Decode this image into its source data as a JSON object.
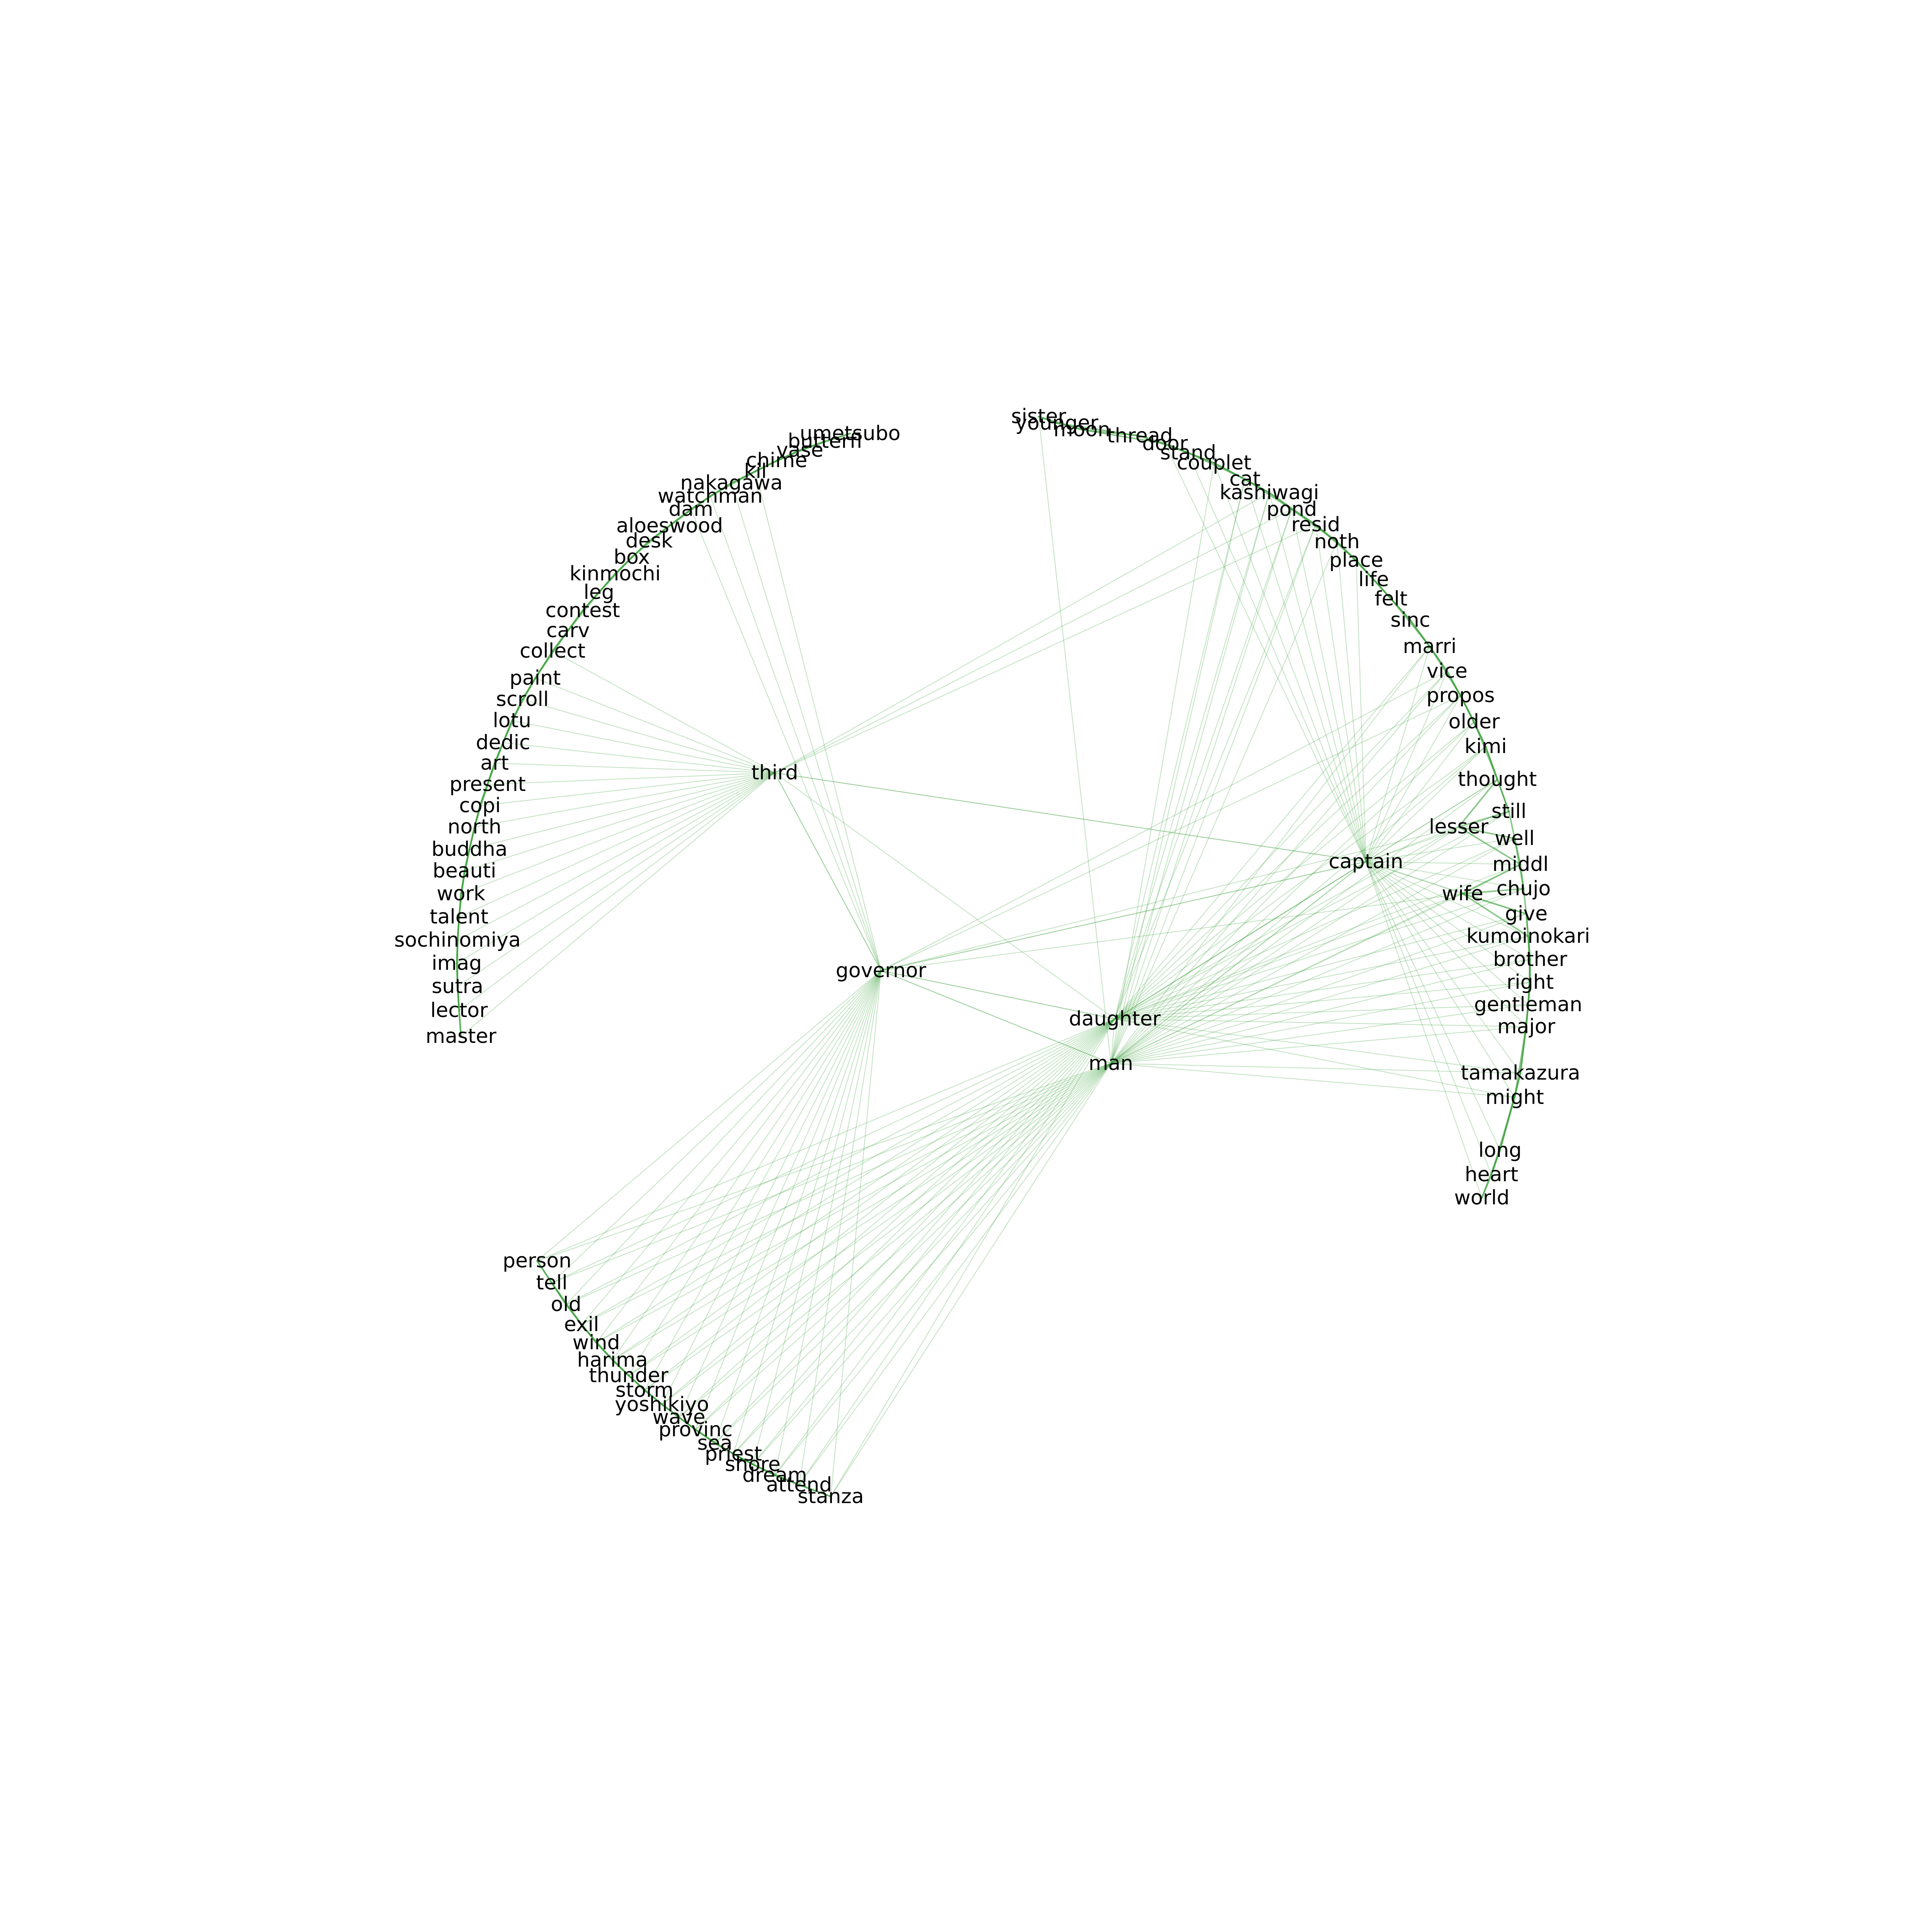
{
  "graph": {
    "edge_color": "#2e9a2e",
    "label_color": "#000000",
    "nodes": [
      "umetsubo",
      "butterfl",
      "vase",
      "chime",
      "kil",
      "nakagawa",
      "watchman",
      "dam",
      "aloeswood",
      "desk",
      "box",
      "kinmochi",
      "leg",
      "contest",
      "carv",
      "collect",
      "paint",
      "scroll",
      "lotu",
      "dedic",
      "art",
      "present",
      "copi",
      "north",
      "buddha",
      "beauti",
      "work",
      "talent",
      "sochinomiya",
      "imag",
      "sutra",
      "lector",
      "master",
      "third",
      "governor",
      "daughter",
      "man",
      "captain",
      "sister",
      "younger",
      "moon",
      "thread",
      "door",
      "stand",
      "couplet",
      "cat",
      "kashiwagi",
      "pond",
      "resid",
      "noth",
      "place",
      "life",
      "felt",
      "sinc",
      "marri",
      "vice",
      "propos",
      "older",
      "kimi",
      "thought",
      "still",
      "lesser",
      "well",
      "middl",
      "chujo",
      "wife",
      "give",
      "kumoinokari",
      "brother",
      "right",
      "gentleman",
      "major",
      "tamakazura",
      "might",
      "long",
      "heart",
      "world",
      "person",
      "tell",
      "old",
      "exil",
      "wind",
      "harima",
      "thunder",
      "storm",
      "yoshikiyo",
      "wave",
      "provinc",
      "sea",
      "priest",
      "shore",
      "dream",
      "attend",
      "stanza"
    ],
    "hub_links": {
      "third": [
        "paint",
        "scroll",
        "lotu",
        "dedic",
        "art",
        "present",
        "copi",
        "north",
        "buddha",
        "beauti",
        "work",
        "talent",
        "sochinomiya",
        "imag",
        "sutra",
        "lector",
        "master",
        "collect",
        "kashiwagi",
        "pond",
        "resid",
        "captain",
        "governor"
      ],
      "governor": [
        "kil",
        "nakagawa",
        "watchman",
        "dam",
        "third",
        "daughter",
        "man",
        "captain",
        "vice",
        "propos",
        "wife",
        "lesser",
        "person",
        "tell",
        "old",
        "exil",
        "wind",
        "harima",
        "thunder",
        "storm",
        "yoshikiyo",
        "wave",
        "provinc",
        "sea",
        "priest",
        "shore",
        "dream",
        "attend",
        "stanza"
      ],
      "daughter": [
        "cat",
        "kashiwagi",
        "pond",
        "resid",
        "marri",
        "vice",
        "propos",
        "older",
        "kimi",
        "thought",
        "still",
        "lesser",
        "well",
        "middl",
        "chujo",
        "wife",
        "give",
        "kumoinokari",
        "brother",
        "right",
        "gentleman",
        "major",
        "tamakazura",
        "might",
        "person",
        "tell",
        "old",
        "exil",
        "wind",
        "harima",
        "thunder",
        "storm",
        "yoshikiyo",
        "wave",
        "provinc",
        "sea",
        "priest",
        "shore",
        "dream",
        "attend",
        "stanza",
        "captain",
        "governor",
        "third"
      ],
      "man": [
        "sister",
        "couplet",
        "cat",
        "kashiwagi",
        "pond",
        "resid",
        "noth",
        "marri",
        "vice",
        "propos",
        "older",
        "kimi",
        "thought",
        "still",
        "lesser",
        "well",
        "middl",
        "chujo",
        "wife",
        "give",
        "kumoinokari",
        "brother",
        "right",
        "gentleman",
        "major",
        "tamakazura",
        "might",
        "person",
        "tell",
        "old",
        "exil",
        "wind",
        "harima",
        "thunder",
        "storm",
        "yoshikiyo",
        "wave",
        "provinc",
        "sea",
        "priest",
        "shore",
        "dream",
        "attend",
        "stanza",
        "captain",
        "daughter",
        "governor"
      ],
      "captain": [
        "door",
        "stand",
        "couplet",
        "cat",
        "kashiwagi",
        "pond",
        "resid",
        "noth",
        "place",
        "marri",
        "vice",
        "propos",
        "older",
        "kimi",
        "thought",
        "still",
        "lesser",
        "well",
        "middl",
        "chujo",
        "wife",
        "give",
        "kumoinokari",
        "brother",
        "right",
        "gentleman",
        "major",
        "tamakazura",
        "might",
        "long",
        "heart",
        "world",
        "third",
        "governor",
        "man",
        "daughter"
      ]
    }
  }
}
